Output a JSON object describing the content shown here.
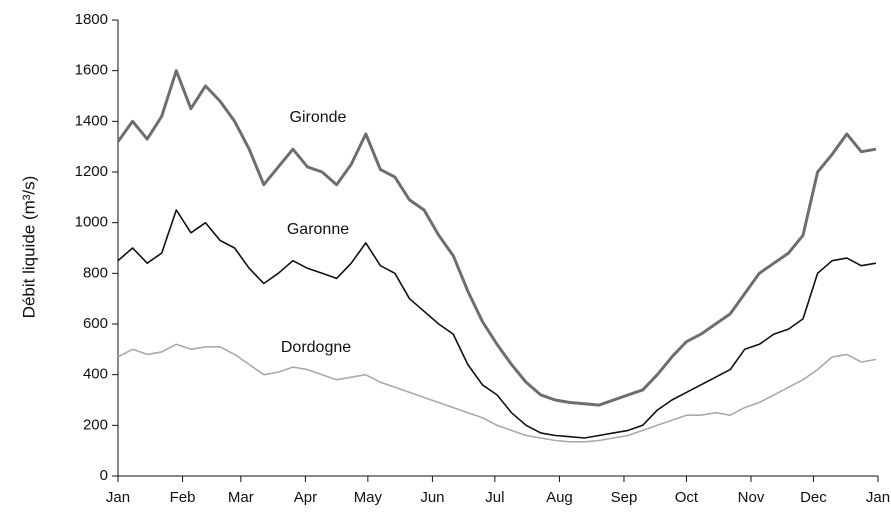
{
  "chart_data": {
    "type": "line",
    "y_label": "Débit liquide (m³/s)",
    "x": [
      0,
      7,
      14,
      21,
      28,
      35,
      42,
      49,
      56,
      63,
      70,
      77,
      84,
      91,
      98,
      105,
      112,
      119,
      126,
      133,
      140,
      147,
      154,
      161,
      168,
      175,
      182,
      189,
      196,
      203,
      210,
      217,
      224,
      231,
      238,
      245,
      252,
      259,
      266,
      273,
      280,
      287,
      294,
      301,
      308,
      315,
      322,
      329,
      336,
      343,
      350,
      357,
      364
    ],
    "series": [
      {
        "name": "Gironde",
        "color": "#6e6e6e",
        "values": [
          1320,
          1400,
          1330,
          1420,
          1600,
          1450,
          1540,
          1480,
          1400,
          1290,
          1150,
          1220,
          1290,
          1220,
          1200,
          1150,
          1230,
          1350,
          1210,
          1180,
          1090,
          1050,
          950,
          870,
          730,
          610,
          520,
          440,
          370,
          320,
          300,
          290,
          285,
          280,
          300,
          320,
          340,
          400,
          470,
          530,
          560,
          600,
          640,
          720,
          800,
          840,
          880,
          950,
          1200,
          1270,
          1350,
          1280,
          1290
        ]
      },
      {
        "name": "Garonne",
        "color": "#111111",
        "values": [
          850,
          900,
          840,
          880,
          1050,
          960,
          1000,
          930,
          900,
          820,
          760,
          800,
          850,
          820,
          800,
          780,
          840,
          920,
          830,
          800,
          700,
          650,
          600,
          560,
          440,
          360,
          320,
          250,
          200,
          170,
          160,
          155,
          150,
          160,
          170,
          180,
          200,
          260,
          300,
          330,
          360,
          390,
          420,
          500,
          520,
          560,
          580,
          620,
          800,
          850,
          860,
          830,
          840
        ]
      },
      {
        "name": "Dordogne",
        "color": "#aaaaaa",
        "values": [
          470,
          500,
          480,
          490,
          520,
          500,
          510,
          510,
          480,
          440,
          400,
          410,
          430,
          420,
          400,
          380,
          390,
          400,
          370,
          350,
          330,
          310,
          290,
          270,
          250,
          230,
          200,
          180,
          160,
          150,
          140,
          135,
          135,
          140,
          150,
          160,
          180,
          200,
          220,
          240,
          240,
          250,
          240,
          270,
          290,
          320,
          350,
          380,
          420,
          470,
          480,
          450,
          460
        ]
      }
    ],
    "xlim": [
      0,
      365
    ],
    "xticks": [
      {
        "value": 0,
        "label": "Jan"
      },
      {
        "value": 31,
        "label": "Feb"
      },
      {
        "value": 59,
        "label": "Mar"
      },
      {
        "value": 90,
        "label": "Apr"
      },
      {
        "value": 120,
        "label": "May"
      },
      {
        "value": 151,
        "label": "Jun"
      },
      {
        "value": 181,
        "label": "Jul"
      },
      {
        "value": 212,
        "label": "Aug"
      },
      {
        "value": 243,
        "label": "Sep"
      },
      {
        "value": 273,
        "label": "Oct"
      },
      {
        "value": 304,
        "label": "Nov"
      },
      {
        "value": 334,
        "label": "Dec"
      },
      {
        "value": 365,
        "label": "Jan"
      }
    ],
    "ylim": [
      0,
      1800
    ],
    "yticks": [
      0,
      200,
      400,
      600,
      800,
      1000,
      1200,
      1400,
      1600,
      1800
    ]
  }
}
